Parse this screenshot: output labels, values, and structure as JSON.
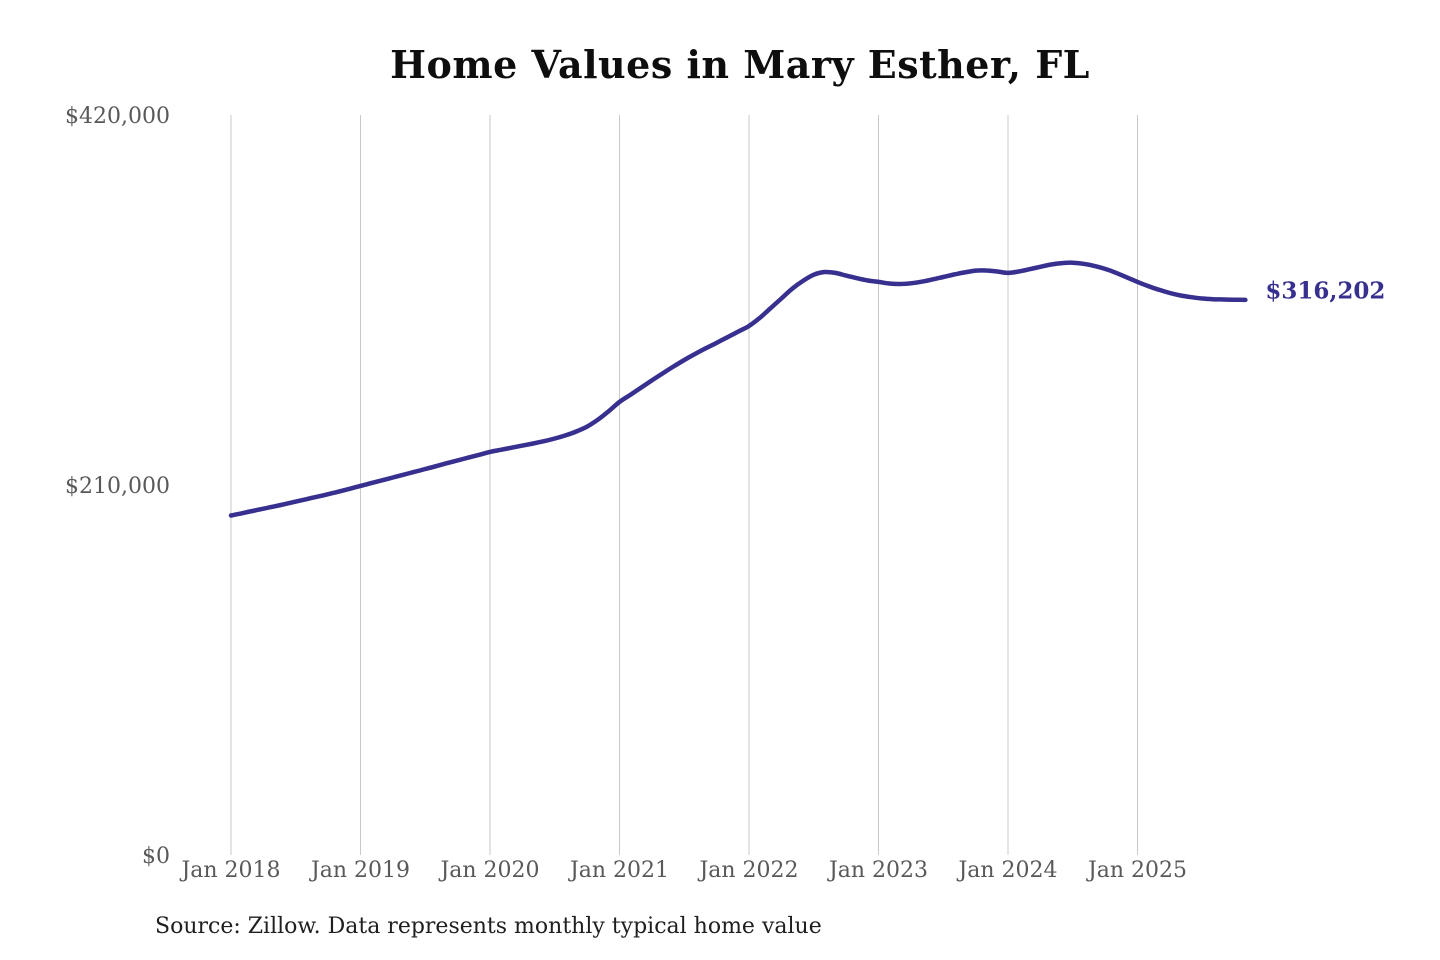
{
  "chart_data": {
    "type": "line",
    "title": "Home Values in Mary Esther, FL",
    "source": "Source: Zillow. Data represents monthly typical home value",
    "end_label": "$316,202",
    "end_value": 316202,
    "ylim": [
      0,
      420000
    ],
    "y_ticks": [
      420000,
      210000,
      0
    ],
    "y_tick_labels": [
      "$420,000",
      "$210,000",
      "$0"
    ],
    "x_tick_labels": [
      "Jan 2018",
      "Jan 2019",
      "Jan 2020",
      "Jan 2021",
      "Jan 2022",
      "Jan 2023",
      "Jan 2024",
      "Jan 2025"
    ],
    "grid": "vertical-only",
    "legend": "none",
    "line_color": "#37308f",
    "label_color": "#37308f",
    "grid_color": "#c9c9c9",
    "tick_color": "#595959",
    "series": [
      {
        "name": "Monthly typical home value",
        "start_month": "2018-01",
        "interval": "monthly",
        "values": [
          193800,
          195100,
          196400,
          197700,
          199000,
          200300,
          201700,
          203100,
          204500,
          205900,
          207400,
          209000,
          210600,
          212200,
          213800,
          215400,
          217000,
          218600,
          220200,
          221800,
          223500,
          225100,
          226700,
          228300,
          229900,
          231100,
          232300,
          233500,
          234700,
          236000,
          237500,
          239300,
          241500,
          244300,
          248200,
          253000,
          258300,
          262300,
          266400,
          270500,
          274500,
          278400,
          282100,
          285500,
          288700,
          291800,
          295000,
          298200,
          301400,
          306000,
          311500,
          317000,
          322500,
          327000,
          330500,
          332000,
          331500,
          330000,
          328500,
          327200,
          326400,
          325500,
          325200,
          325600,
          326500,
          327800,
          329200,
          330600,
          331800,
          332800,
          332900,
          332300,
          331500,
          332300,
          333600,
          335000,
          336300,
          337100,
          337300,
          336700,
          335500,
          333800,
          331600,
          329000,
          326400,
          324000,
          321900,
          320100,
          318700,
          317700,
          317000,
          316600,
          316400,
          316300,
          316202
        ]
      }
    ]
  }
}
